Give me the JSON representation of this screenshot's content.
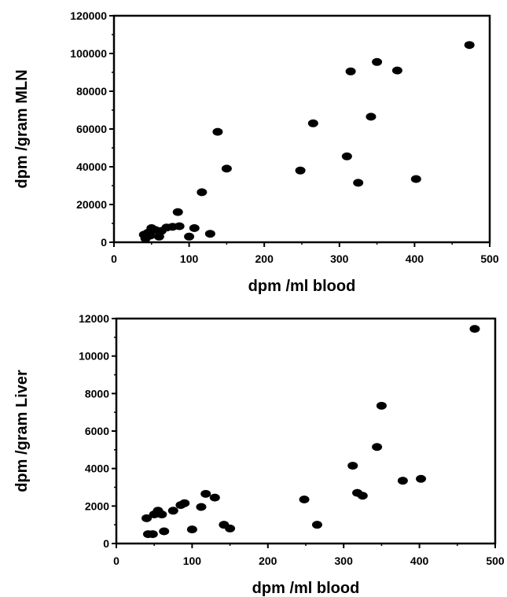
{
  "chart_data": [
    {
      "type": "scatter",
      "xlabel": "dpm /ml blood",
      "ylabel": "dpm /gram MLN",
      "xlim": [
        0,
        500
      ],
      "ylim": [
        0,
        120000
      ],
      "xticks": [
        0,
        100,
        200,
        300,
        400,
        500
      ],
      "yticks": [
        0,
        20000,
        40000,
        60000,
        80000,
        100000,
        120000
      ],
      "grid": false,
      "points": [
        {
          "x": 40,
          "y": 4000
        },
        {
          "x": 42,
          "y": 2000
        },
        {
          "x": 45,
          "y": 5000
        },
        {
          "x": 48,
          "y": 3500
        },
        {
          "x": 50,
          "y": 7500
        },
        {
          "x": 55,
          "y": 6500
        },
        {
          "x": 60,
          "y": 3000
        },
        {
          "x": 63,
          "y": 6000
        },
        {
          "x": 70,
          "y": 7800
        },
        {
          "x": 78,
          "y": 8200
        },
        {
          "x": 85,
          "y": 16000
        },
        {
          "x": 87,
          "y": 8500
        },
        {
          "x": 100,
          "y": 3000
        },
        {
          "x": 107,
          "y": 7500
        },
        {
          "x": 117,
          "y": 26500
        },
        {
          "x": 128,
          "y": 4500
        },
        {
          "x": 138,
          "y": 58500
        },
        {
          "x": 150,
          "y": 39000
        },
        {
          "x": 248,
          "y": 38000
        },
        {
          "x": 265,
          "y": 63000
        },
        {
          "x": 310,
          "y": 45500
        },
        {
          "x": 315,
          "y": 90500
        },
        {
          "x": 325,
          "y": 31500
        },
        {
          "x": 342,
          "y": 66500
        },
        {
          "x": 350,
          "y": 95500
        },
        {
          "x": 377,
          "y": 91000
        },
        {
          "x": 402,
          "y": 33500
        },
        {
          "x": 473,
          "y": 104500
        }
      ]
    },
    {
      "type": "scatter",
      "xlabel": "dpm /ml blood",
      "ylabel": "dpm /gram Liver",
      "xlim": [
        0,
        500
      ],
      "ylim": [
        0,
        12000
      ],
      "xticks": [
        0,
        100,
        200,
        300,
        400,
        500
      ],
      "yticks": [
        0,
        2000,
        4000,
        6000,
        8000,
        10000,
        12000
      ],
      "grid": false,
      "points": [
        {
          "x": 40,
          "y": 1350
        },
        {
          "x": 42,
          "y": 500
        },
        {
          "x": 48,
          "y": 500
        },
        {
          "x": 50,
          "y": 1550
        },
        {
          "x": 55,
          "y": 1750
        },
        {
          "x": 60,
          "y": 1550
        },
        {
          "x": 63,
          "y": 650
        },
        {
          "x": 75,
          "y": 1750
        },
        {
          "x": 85,
          "y": 2050
        },
        {
          "x": 90,
          "y": 2150
        },
        {
          "x": 100,
          "y": 750
        },
        {
          "x": 112,
          "y": 1950
        },
        {
          "x": 118,
          "y": 2650
        },
        {
          "x": 130,
          "y": 2450
        },
        {
          "x": 142,
          "y": 1000
        },
        {
          "x": 150,
          "y": 800
        },
        {
          "x": 248,
          "y": 2350
        },
        {
          "x": 265,
          "y": 1000
        },
        {
          "x": 312,
          "y": 4150
        },
        {
          "x": 318,
          "y": 2700
        },
        {
          "x": 325,
          "y": 2550
        },
        {
          "x": 344,
          "y": 5150
        },
        {
          "x": 350,
          "y": 7350
        },
        {
          "x": 378,
          "y": 3350
        },
        {
          "x": 402,
          "y": 3450
        },
        {
          "x": 473,
          "y": 11450
        }
      ]
    }
  ]
}
